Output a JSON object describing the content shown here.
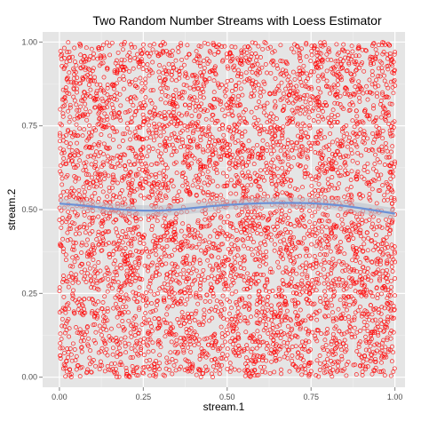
{
  "chart_data": {
    "type": "scatter",
    "title": "Two Random Number Streams with Loess Estimator",
    "xlabel": "stream.1",
    "ylabel": "stream.2",
    "xlim": [
      -0.05,
      1.03
    ],
    "ylim": [
      -0.03,
      1.03
    ],
    "x_ticks": [
      0.0,
      0.25,
      0.5,
      0.75,
      1.0
    ],
    "x_tick_labels": [
      "0.00",
      "0.25",
      "0.50",
      "0.75",
      "1.00"
    ],
    "y_ticks": [
      0.0,
      0.25,
      0.5,
      0.75,
      1.0
    ],
    "y_tick_labels": [
      "0.00",
      "0.25",
      "0.50",
      "0.75",
      "1.00"
    ],
    "grid": true,
    "point_color": "#ff0000",
    "point_count_estimate": 5000,
    "points": [
      [
        0.05,
        0.93
      ],
      [
        0.12,
        0.81
      ],
      [
        0.18,
        0.27
      ],
      [
        0.23,
        0.66
      ],
      [
        0.31,
        0.42
      ],
      [
        0.37,
        0.08
      ],
      [
        0.44,
        0.95
      ],
      [
        0.49,
        0.57
      ],
      [
        0.55,
        0.21
      ],
      [
        0.61,
        0.74
      ],
      [
        0.66,
        0.36
      ],
      [
        0.72,
        0.88
      ],
      [
        0.78,
        0.13
      ],
      [
        0.83,
        0.61
      ],
      [
        0.89,
        0.47
      ],
      [
        0.94,
        0.02
      ],
      [
        0.98,
        0.79
      ],
      [
        0.02,
        0.35
      ],
      [
        0.27,
        0.99
      ],
      [
        0.58,
        0.04
      ],
      [
        0.69,
        0.53
      ],
      [
        0.91,
        0.26
      ],
      [
        0.15,
        0.49
      ],
      [
        0.4,
        0.71
      ],
      [
        0.81,
        0.92
      ]
    ],
    "loess": {
      "name": "loess",
      "color": "#6c91d6",
      "x": [
        0.0,
        0.05,
        0.1,
        0.15,
        0.2,
        0.25,
        0.3,
        0.35,
        0.4,
        0.45,
        0.5,
        0.55,
        0.6,
        0.65,
        0.7,
        0.75,
        0.8,
        0.85,
        0.9,
        0.95,
        1.0
      ],
      "y": [
        0.518,
        0.514,
        0.509,
        0.503,
        0.499,
        0.497,
        0.497,
        0.5,
        0.505,
        0.51,
        0.514,
        0.517,
        0.519,
        0.52,
        0.52,
        0.519,
        0.516,
        0.511,
        0.504,
        0.496,
        0.488
      ]
    }
  }
}
